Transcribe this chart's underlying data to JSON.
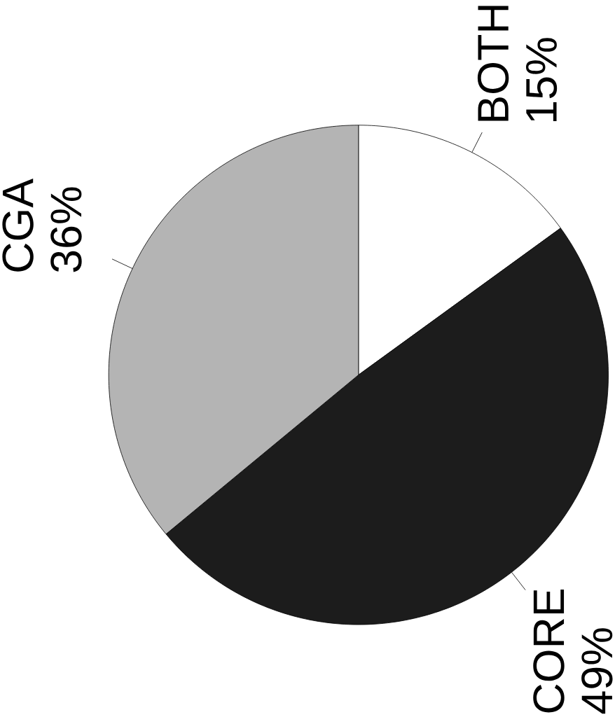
{
  "chart_data": {
    "type": "pie",
    "categories": [
      "BOTH",
      "CORE",
      "CGA"
    ],
    "values": [
      15,
      49,
      36
    ],
    "colors": [
      "#ffffff",
      "#1c1c1c",
      "#b4b4b4"
    ],
    "value_labels": [
      "15%",
      "49%",
      "36%"
    ]
  }
}
